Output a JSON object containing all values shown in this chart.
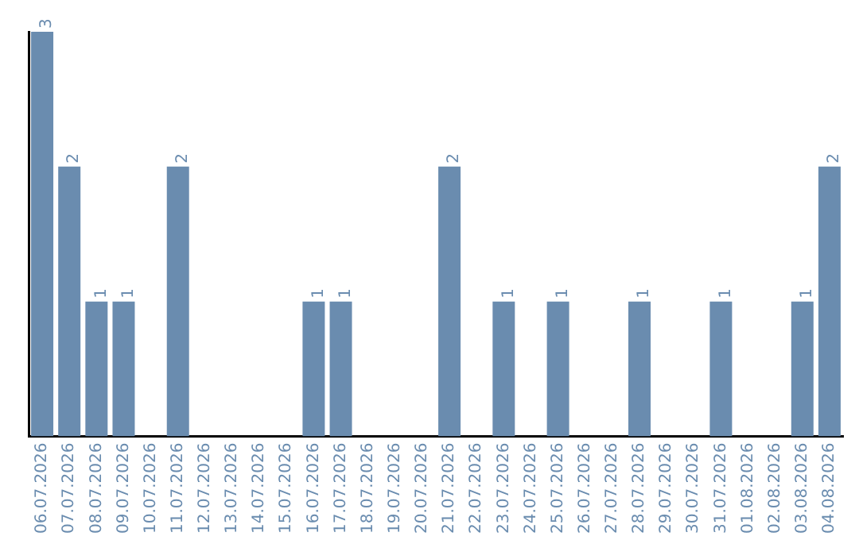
{
  "chart_data": {
    "type": "bar",
    "categories": [
      "06.07.2026",
      "07.07.2026",
      "08.07.2026",
      "09.07.2026",
      "10.07.2026",
      "11.07.2026",
      "12.07.2026",
      "13.07.2026",
      "14.07.2026",
      "15.07.2026",
      "16.07.2026",
      "17.07.2026",
      "18.07.2026",
      "19.07.2026",
      "20.07.2026",
      "21.07.2026",
      "22.07.2026",
      "23.07.2026",
      "24.07.2026",
      "25.07.2026",
      "26.07.2026",
      "27.07.2026",
      "28.07.2026",
      "29.07.2026",
      "30.07.2026",
      "31.07.2026",
      "01.08.2026",
      "02.08.2026",
      "03.08.2026",
      "04.08.2026"
    ],
    "values": [
      3,
      2,
      1,
      1,
      0,
      2,
      0,
      0,
      0,
      0,
      1,
      1,
      0,
      0,
      0,
      2,
      0,
      1,
      0,
      1,
      0,
      0,
      1,
      0,
      0,
      1,
      0,
      0,
      1,
      2
    ],
    "value_labels": [
      "3",
      "2",
      "1",
      "1",
      null,
      "2",
      null,
      null,
      null,
      null,
      "1",
      "1",
      null,
      null,
      null,
      "2",
      null,
      "1",
      null,
      "1",
      null,
      null,
      "1",
      null,
      null,
      "1",
      null,
      null,
      "1",
      "2"
    ],
    "color": "#6a8caf",
    "ylim": [
      0,
      3
    ],
    "tick_labels": "x",
    "grid": false,
    "legend": false
  }
}
